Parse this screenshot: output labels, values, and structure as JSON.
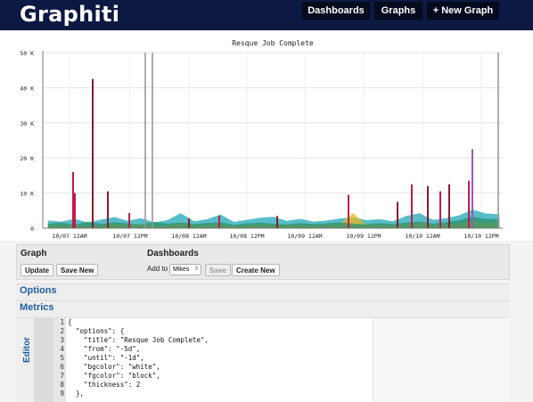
{
  "header": {
    "brand": "Graphiti",
    "nav": [
      {
        "label": "Dashboards"
      },
      {
        "label": "Graphs"
      },
      {
        "label": "+ New Graph"
      }
    ]
  },
  "chart_data": {
    "type": "line",
    "title": "Resque Job Complete",
    "xlabel": "",
    "ylabel": "",
    "ylim": [
      0,
      50000
    ],
    "yticks": [
      "0",
      "10 K",
      "20 K",
      "30 K",
      "40 K",
      "50 K"
    ],
    "xticks": [
      "10/07 12AM",
      "10/07 12PM",
      "10/08 12AM",
      "10/08 12PM",
      "10/09 12AM",
      "10/09 12PM",
      "10/10 12AM",
      "10/10 12PM"
    ],
    "grid": true,
    "background": "#ffffff",
    "colors": [
      "#8b1a2e",
      "#e8b81c",
      "#2a8f6e",
      "#1fa9b8",
      "#3060a8",
      "#8b5a2b",
      "#9b59b6",
      "#c21a4e",
      "#2e2e2e"
    ],
    "series": [
      {
        "values": [
          2100,
          1800,
          2600,
          1500,
          2400,
          3100,
          2000,
          2800,
          1600,
          2200,
          4200,
          1900,
          2500,
          3800,
          1700,
          2300,
          2900,
          3200,
          2000,
          2600,
          1800,
          2100,
          2700,
          3000,
          2200,
          2500,
          1900,
          3400,
          4200,
          2300,
          2800,
          3600,
          5200,
          4100,
          3900
        ]
      },
      {
        "values": [
          800,
          600,
          900,
          500,
          700,
          1200,
          800,
          1000,
          600,
          700,
          1400,
          600,
          900,
          1100,
          500,
          800,
          1000,
          900,
          700,
          800,
          600,
          900,
          1000,
          4200,
          700,
          900,
          600,
          1100,
          1500,
          800,
          900,
          1300,
          1800,
          1500,
          1400
        ]
      },
      {
        "values": [
          1200,
          1500,
          900,
          1800,
          1100,
          1600,
          1300,
          1000,
          1700,
          1200,
          1500,
          1100,
          1400,
          1600,
          900,
          1300,
          1500,
          1200,
          1000,
          1400,
          1100,
          1300,
          1600,
          1200,
          1000,
          1400,
          1100,
          1500,
          1800,
          1200,
          1600,
          2200,
          3200,
          2600,
          2500
        ]
      }
    ],
    "spikes": [
      {
        "x": 34,
        "value": 16000
      },
      {
        "x": 56,
        "value": 42500
      },
      {
        "x": 36,
        "value": 10000
      },
      {
        "x": 73,
        "value": 10500
      },
      {
        "x": 97,
        "value": 4300
      },
      {
        "x": 164,
        "value": 2800
      },
      {
        "x": 198,
        "value": 3600
      },
      {
        "x": 263,
        "value": 3500
      },
      {
        "x": 343,
        "value": 9500
      },
      {
        "x": 398,
        "value": 7500
      },
      {
        "x": 414,
        "value": 12500
      },
      {
        "x": 432,
        "value": 12000
      },
      {
        "x": 446,
        "value": 10500
      },
      {
        "x": 456,
        "value": 12500
      },
      {
        "x": 478,
        "value": 13500
      },
      {
        "x": 482,
        "value": 22500
      }
    ]
  },
  "graph_section": {
    "title": "Graph",
    "update_label": "Update",
    "save_new_label": "Save New"
  },
  "dashboards_section": {
    "title": "Dashboards",
    "add_to_label": "Add to",
    "selected": "Mikes",
    "save_label": "Save",
    "create_new_label": "Create New"
  },
  "accordion": {
    "options_label": "Options",
    "metrics_label": "Metrics",
    "editor_label": "Editor"
  },
  "editor": {
    "line_numbers": [
      "1",
      "2",
      "3",
      "4",
      "5",
      "6",
      "7",
      "8",
      "9"
    ],
    "lines": [
      "{",
      "  \"options\": {",
      "    \"title\": \"Resque Job Complete\",",
      "    \"from\": \"-5d\",",
      "    \"until\": \"-1d\",",
      "    \"bgcolor\": \"white\",",
      "    \"fgcolor\": \"block\",",
      "    \"thickness\": 2",
      "  },"
    ]
  }
}
